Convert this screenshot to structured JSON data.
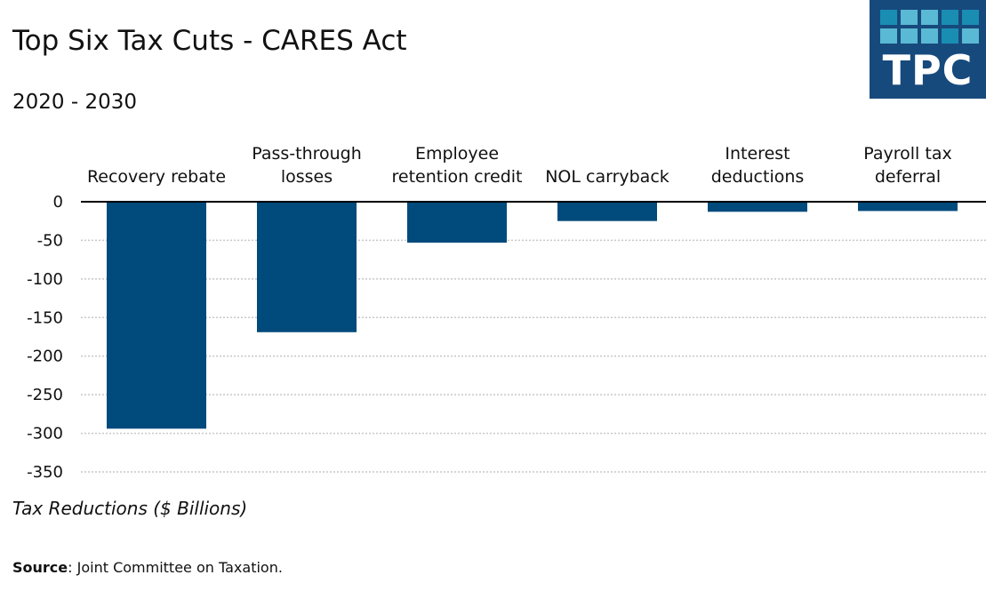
{
  "header": {
    "title": "Top Six Tax Cuts - CARES Act",
    "subtitle": "2020 - 2030"
  },
  "logo": {
    "text": "TPC",
    "background": "#174a7c",
    "cell_colors": {
      "dark": "#1a8db3",
      "light": "#5ab9d4"
    },
    "grid_pattern": [
      [
        "dark",
        "light",
        "light",
        "dark",
        "dark"
      ],
      [
        "light",
        "light",
        "light",
        "dark",
        "light"
      ]
    ]
  },
  "footer": {
    "source_label": "Source",
    "source_text": ": Joint Committee on Taxation."
  },
  "chart_data": {
    "type": "bar",
    "title": "Top Six Tax Cuts - CARES Act",
    "subtitle": "2020 - 2030",
    "xlabel": "",
    "ylabel": "Tax Reductions ($ Billions)",
    "categories": [
      [
        "Recovery rebate"
      ],
      [
        "Pass-through",
        "losses"
      ],
      [
        "Employee",
        "retention credit"
      ],
      [
        "NOL carryback"
      ],
      [
        "Interest",
        "deductions"
      ],
      [
        "Payroll tax",
        "deferral"
      ]
    ],
    "category_names": [
      "Recovery rebate",
      "Pass-through losses",
      "Employee retention credit",
      "NOL carryback",
      "Interest deductions",
      "Payroll tax deferral"
    ],
    "values": [
      -294,
      -169,
      -53,
      -25,
      -13,
      -12
    ],
    "ylim": [
      -350,
      0
    ],
    "yticks": [
      0,
      -50,
      -100,
      -150,
      -200,
      -250,
      -300,
      -350
    ],
    "grid": true,
    "category_labels_position": "top",
    "bar_color": "#004a7c",
    "legend": null
  }
}
